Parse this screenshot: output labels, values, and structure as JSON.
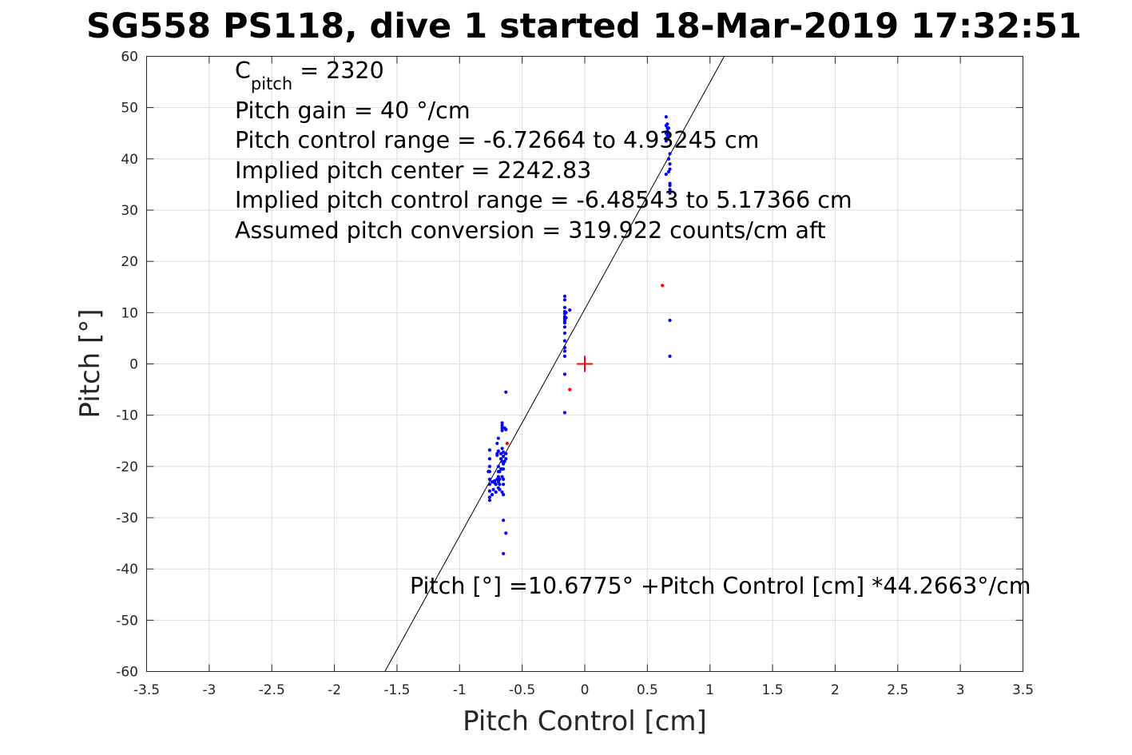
{
  "chart_data": {
    "type": "scatter",
    "title": "SG558 PS118, dive 1 started 18-Mar-2019 17:32:51",
    "xlabel": "Pitch Control [cm]",
    "ylabel": "Pitch [°]",
    "xlim": [
      -3.5,
      3.5
    ],
    "ylim": [
      -60,
      60
    ],
    "grid": true,
    "xticks": [
      -3.5,
      -3,
      -2.5,
      -2,
      -1.5,
      -1,
      -0.5,
      0,
      0.5,
      1,
      1.5,
      2,
      2.5,
      3,
      3.5
    ],
    "xtick_labels": [
      "-3.5",
      "-3",
      "-2.5",
      "-2",
      "-1.5",
      "-1",
      "-0.5",
      "0",
      "0.5",
      "1",
      "1.5",
      "2",
      "2.5",
      "3",
      "3.5"
    ],
    "yticks": [
      -60,
      -50,
      -40,
      -30,
      -20,
      -10,
      0,
      10,
      20,
      30,
      40,
      50,
      60
    ],
    "ytick_labels": [
      "-60",
      "-50",
      "-40",
      "-30",
      "-20",
      "-10",
      "0",
      "10",
      "20",
      "30",
      "40",
      "50",
      "60"
    ],
    "annotations": {
      "c_pitch_prefix": "C",
      "c_pitch_sub": "pitch",
      "c_pitch_value": " = 2320",
      "pitch_gain": "Pitch gain = 40 °/cm",
      "control_range": "Pitch control range = -6.72664 to 4.93245 cm",
      "implied_center": "Implied pitch center = 2242.83",
      "implied_range": "Implied pitch control range = -6.48543 to 5.17366 cm",
      "assumed_conversion": "Assumed pitch conversion = 319.922 counts/cm aft",
      "fit_equation": "Pitch [°] =10.6775° +Pitch Control [cm] *44.2663°/cm"
    },
    "fit_line": {
      "intercept": 10.6775,
      "slope": 44.2663,
      "color": "#000000"
    },
    "center_marker": {
      "x": 0,
      "y": 0,
      "color": "#ff0000"
    },
    "series": [
      {
        "color": "#0000ff",
        "points": [
          [
            -0.76,
            -26.6
          ],
          [
            -0.76,
            -26.0
          ],
          [
            -0.76,
            -24.8
          ],
          [
            -0.76,
            -23.5
          ],
          [
            -0.76,
            -22.5
          ],
          [
            -0.76,
            -21.0
          ],
          [
            -0.76,
            -20.0
          ],
          [
            -0.76,
            -18.5
          ],
          [
            -0.76,
            -16.8
          ],
          [
            -0.77,
            -21.0
          ],
          [
            -0.74,
            -25.5
          ],
          [
            -0.74,
            -23.0
          ],
          [
            -0.73,
            -24.5
          ],
          [
            -0.72,
            -23.2
          ],
          [
            -0.72,
            -22.8
          ],
          [
            -0.71,
            -25.0
          ],
          [
            -0.71,
            -23.5
          ],
          [
            -0.7,
            -22.5
          ],
          [
            -0.7,
            -17.5
          ],
          [
            -0.7,
            -17.8
          ],
          [
            -0.7,
            -15.5
          ],
          [
            -0.69,
            -24.2
          ],
          [
            -0.69,
            -23.0
          ],
          [
            -0.69,
            -22.0
          ],
          [
            -0.69,
            -21.0
          ],
          [
            -0.69,
            -20.0
          ],
          [
            -0.69,
            -17.0
          ],
          [
            -0.69,
            -14.5
          ],
          [
            -0.68,
            -24.5
          ],
          [
            -0.68,
            -23.5
          ],
          [
            -0.68,
            -22.5
          ],
          [
            -0.68,
            -21.0
          ],
          [
            -0.67,
            -20.5
          ],
          [
            -0.67,
            -18.5
          ],
          [
            -0.67,
            -17.5
          ],
          [
            -0.66,
            -25.0
          ],
          [
            -0.66,
            -22.0
          ],
          [
            -0.66,
            -20.5
          ],
          [
            -0.66,
            -19.0
          ],
          [
            -0.66,
            -16.5
          ],
          [
            -0.66,
            -13.0
          ],
          [
            -0.66,
            -12.5
          ],
          [
            -0.66,
            -12.0
          ],
          [
            -0.66,
            -11.5
          ],
          [
            -0.65,
            -25.5
          ],
          [
            -0.65,
            -23.5
          ],
          [
            -0.65,
            -22.5
          ],
          [
            -0.65,
            -20.5
          ],
          [
            -0.65,
            -19.5
          ],
          [
            -0.65,
            -18.0
          ],
          [
            -0.65,
            -17.2
          ],
          [
            -0.65,
            -30.5
          ],
          [
            -0.65,
            -37.0
          ],
          [
            -0.64,
            -19.0
          ],
          [
            -0.63,
            -18.5
          ],
          [
            -0.63,
            -17.5
          ],
          [
            -0.63,
            -33.0
          ],
          [
            -0.63,
            -5.5
          ],
          [
            -0.64,
            -12.5
          ],
          [
            -0.63,
            -12.8
          ],
          [
            -0.16,
            13.2
          ],
          [
            -0.16,
            12.5
          ],
          [
            -0.16,
            11.0
          ],
          [
            -0.16,
            10.2
          ],
          [
            -0.16,
            9.8
          ],
          [
            -0.16,
            9.2
          ],
          [
            -0.16,
            8.8
          ],
          [
            -0.16,
            8.4
          ],
          [
            -0.16,
            8.0
          ],
          [
            -0.16,
            7.2
          ],
          [
            -0.16,
            6.0
          ],
          [
            -0.16,
            4.5
          ],
          [
            -0.16,
            3.2
          ],
          [
            -0.16,
            2.5
          ],
          [
            -0.16,
            1.5
          ],
          [
            -0.16,
            -2.0
          ],
          [
            -0.16,
            -9.5
          ],
          [
            -0.15,
            10.0
          ],
          [
            -0.15,
            9.0
          ],
          [
            -0.12,
            10.5
          ],
          [
            0.65,
            48.2
          ],
          [
            0.65,
            46.5
          ],
          [
            0.65,
            45.0
          ],
          [
            0.65,
            44.0
          ],
          [
            0.65,
            43.5
          ],
          [
            0.65,
            37.0
          ],
          [
            0.66,
            46.8
          ],
          [
            0.66,
            46.0
          ],
          [
            0.66,
            45.4
          ],
          [
            0.66,
            44.6
          ],
          [
            0.66,
            43.8
          ],
          [
            0.67,
            46.0
          ],
          [
            0.67,
            45.0
          ],
          [
            0.67,
            44.3
          ],
          [
            0.67,
            40.0
          ],
          [
            0.67,
            37.5
          ],
          [
            0.68,
            41.0
          ],
          [
            0.68,
            39.0
          ],
          [
            0.68,
            38.0
          ],
          [
            0.68,
            35.2
          ],
          [
            0.68,
            34.8
          ],
          [
            0.68,
            34.0
          ],
          [
            0.68,
            33.3
          ],
          [
            0.68,
            8.5
          ],
          [
            0.68,
            1.5
          ]
        ]
      },
      {
        "color": "#ff0000",
        "points": [
          [
            -0.62,
            -15.5
          ],
          [
            -0.12,
            -5.0
          ],
          [
            0.62,
            15.3
          ]
        ]
      }
    ]
  }
}
